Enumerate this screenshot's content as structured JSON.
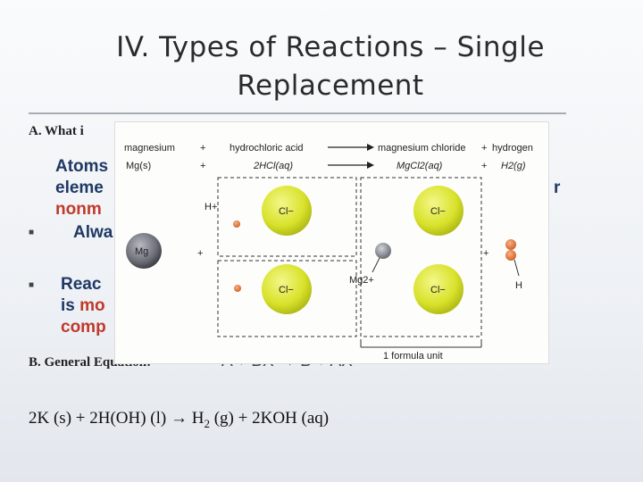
{
  "slide": {
    "title_line1": "IV. Types of Reactions – Single",
    "title_line2": "Replacement",
    "heading_a": "A. What i",
    "para1_line1": "Atoms",
    "para1_line2": "eleme",
    "para1_line3_red": "nonm",
    "para1_line4": "Alwa",
    "right_fragment": "r",
    "para2_line1": "Reac",
    "para2_line2_prefix": "is ",
    "para2_line2_red": "mo",
    "para2_line3_red": "comp",
    "heading_b": "B. General Equation:",
    "general_equation": "A + BX → B + AX",
    "example": {
      "left": "2K (s) + 2H(OH) (l)",
      "arrow": "→",
      "h": "H",
      "h_sub": "2",
      "right": "(g) + 2KOH (aq)"
    }
  },
  "figure": {
    "row1": {
      "c1": "magnesium",
      "p1": "+",
      "c2": "hydrochloric acid",
      "c3": "magnesium chloride",
      "p2": "+",
      "c4": "hydrogen"
    },
    "row2": {
      "f1": "Mg(s)",
      "p1": "+",
      "f2": "2HCl(aq)",
      "f3": "MgCl2(aq)",
      "p2": "+",
      "f4": "H2(g)"
    },
    "labels": {
      "mg": "Mg",
      "hplus": "H+",
      "cl1": "Cl−",
      "cl2": "Cl−",
      "cl3": "Cl−",
      "cl4": "Cl−",
      "mg2": "Mg2+",
      "h": "H",
      "plus_a": "+",
      "plus_b": "+",
      "formula_unit": "1 formula unit"
    },
    "colors": {
      "chloride": "#d8e22a",
      "hydrogen": "#e07a3a",
      "magnesium": "#6d6f78"
    }
  }
}
